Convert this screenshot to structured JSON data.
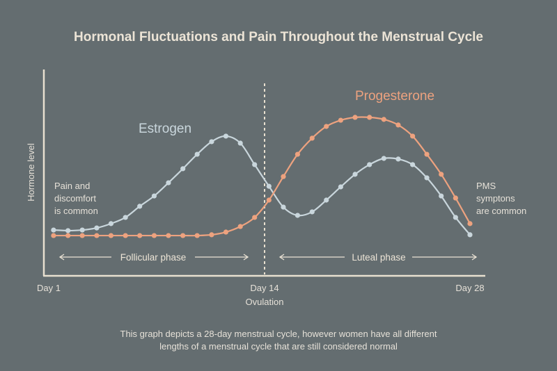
{
  "chart_data": {
    "type": "line",
    "title": "Hormonal Fluctuations and Pain Throughout the Menstrual Cycle",
    "xlabel": "",
    "ylabel": "Hormone level",
    "xlim": [
      1,
      28
    ],
    "ylim": [
      0,
      100
    ],
    "grid": false,
    "x_ticks": [
      {
        "day": 1,
        "label": "Day 1"
      },
      {
        "day": 14,
        "label": "Day 14",
        "sublabel": "Ovulation"
      },
      {
        "day": 28,
        "label": "Day 28"
      }
    ],
    "ovulation_day": 14,
    "x": [
      1.29,
      2.16,
      3.02,
      3.89,
      4.75,
      5.62,
      6.48,
      7.35,
      8.21,
      9.08,
      9.94,
      10.81,
      11.67,
      12.54,
      13.4,
      14.3,
      15.28,
      16.25,
      17.24,
      18.21,
      19.19,
      20.17,
      21.15,
      22.13,
      23.11,
      24.09,
      25.06,
      26.04,
      27.02,
      28.0
    ],
    "series": [
      {
        "name": "Estrogen",
        "color": "#c9d6dc",
        "values": [
          22.2,
          21.9,
          22.2,
          23.2,
          25.3,
          28.3,
          33.7,
          38.7,
          45.1,
          51.9,
          58.9,
          65.0,
          67.7,
          64.3,
          53.9,
          43.4,
          33.3,
          29.3,
          31.0,
          36.7,
          43.1,
          49.2,
          53.9,
          56.9,
          56.6,
          53.9,
          47.5,
          38.7,
          28.3,
          19.9
        ]
      },
      {
        "name": "Progesterone",
        "color": "#eda27f",
        "values": [
          19.5,
          19.5,
          19.5,
          19.5,
          19.5,
          19.5,
          19.5,
          19.5,
          19.5,
          19.5,
          19.5,
          19.9,
          21.2,
          23.9,
          28.3,
          36.7,
          48.1,
          58.9,
          66.7,
          72.4,
          75.4,
          76.8,
          76.8,
          75.8,
          73.1,
          67.7,
          58.9,
          49.2,
          37.7,
          25.3
        ]
      }
    ],
    "phases": [
      {
        "label": "Follicular phase",
        "from_day": 1,
        "to_day": 14
      },
      {
        "label": "Luteal phase",
        "from_day": 14,
        "to_day": 28
      }
    ],
    "annotations": {
      "pain": [
        "Pain and",
        "discomfort",
        "is common"
      ],
      "pms": [
        "PMS",
        "symptons",
        "are common"
      ]
    },
    "footnote": [
      "This graph depicts a 28-day menstrual cycle, however women have all different",
      "lengths of a menstrual cycle that are still considered normal"
    ]
  },
  "colors": {
    "background": "#646d70",
    "axis": "#e8e0d0",
    "text": "#ece4d6"
  }
}
